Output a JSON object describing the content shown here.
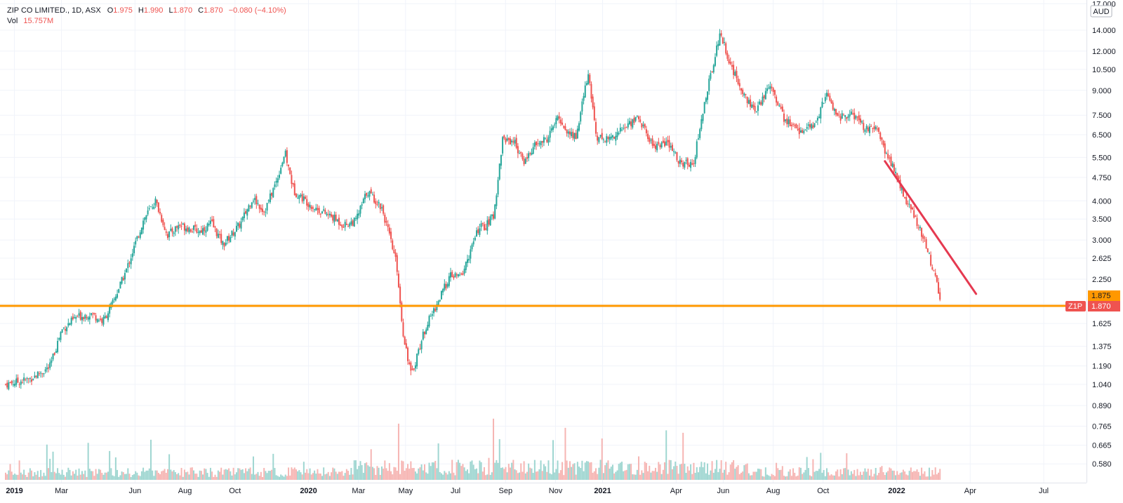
{
  "header": {
    "symbol": "ZIP CO LIMITED., 1D, ASX",
    "o_label": "O",
    "o_value": "1.975",
    "h_label": "H",
    "h_value": "1.990",
    "l_label": "L",
    "l_value": "1.870",
    "c_label": "C",
    "c_value": "1.870",
    "change": "−0.080 (−4.10%)",
    "vol_label": "Vol",
    "vol_value": "15.757M"
  },
  "chart_data": {
    "type": "candlestick",
    "scale": "log",
    "currency_label": "AUD",
    "y_ticks": [
      "17.000",
      "14.000",
      "12.000",
      "10.500",
      "9.000",
      "7.500",
      "6.500",
      "5.500",
      "4.750",
      "4.000",
      "3.500",
      "3.000",
      "2.625",
      "2.250",
      "1.875",
      "1.625",
      "1.375",
      "1.190",
      "1.040",
      "0.890",
      "0.765",
      "0.665",
      "0.580"
    ],
    "ylim": [
      0.5,
      17.5
    ],
    "x_ticks": [
      "2019",
      "Mar",
      "Jun",
      "Aug",
      "Oct",
      "2020",
      "Mar",
      "May",
      "Jul",
      "Sep",
      "Nov",
      "2021",
      "Apr",
      "Jun",
      "Aug",
      "Oct",
      "2022",
      "Apr",
      "Jul"
    ],
    "last_price": 1.87,
    "last_price_label": "1.870",
    "last_ticker_label": "Z1P",
    "prev_price_label": "1.875",
    "horizontal_line": {
      "price": 1.85,
      "color": "#ff9800"
    },
    "trend_line": {
      "from": [
        2021.96,
        5.35
      ],
      "to": [
        2022.27,
        2.02
      ],
      "color": "#e53950"
    },
    "colors": {
      "up": "#26a69a",
      "down": "#ef5350",
      "up_vol": "#9fd6d1",
      "down_vol": "#f6b5b3"
    },
    "price_path": [
      [
        2018.97,
        1.04
      ],
      [
        2019.05,
        1.08
      ],
      [
        2019.12,
        1.18
      ],
      [
        2019.16,
        1.55
      ],
      [
        2019.21,
        1.7
      ],
      [
        2019.26,
        1.75
      ],
      [
        2019.3,
        1.65
      ],
      [
        2019.33,
        1.85
      ],
      [
        2019.38,
        2.4
      ],
      [
        2019.44,
        3.5
      ],
      [
        2019.48,
        4.0
      ],
      [
        2019.52,
        3.1
      ],
      [
        2019.56,
        3.35
      ],
      [
        2019.63,
        3.2
      ],
      [
        2019.67,
        3.4
      ],
      [
        2019.71,
        2.9
      ],
      [
        2019.77,
        3.4
      ],
      [
        2019.81,
        4.1
      ],
      [
        2019.85,
        3.7
      ],
      [
        2019.89,
        4.6
      ],
      [
        2019.92,
        5.7
      ],
      [
        2019.95,
        4.3
      ],
      [
        2020.02,
        3.8
      ],
      [
        2020.08,
        3.55
      ],
      [
        2020.12,
        3.35
      ],
      [
        2020.16,
        3.45
      ],
      [
        2020.2,
        4.3
      ],
      [
        2020.25,
        3.8
      ],
      [
        2020.3,
        2.5
      ],
      [
        2020.32,
        1.55
      ],
      [
        2020.35,
        1.1
      ],
      [
        2020.37,
        1.3
      ],
      [
        2020.4,
        1.6
      ],
      [
        2020.44,
        1.9
      ],
      [
        2020.48,
        2.3
      ],
      [
        2020.52,
        2.3
      ],
      [
        2020.58,
        3.3
      ],
      [
        2020.6,
        3.3
      ],
      [
        2020.63,
        3.6
      ],
      [
        2020.66,
        6.3
      ],
      [
        2020.7,
        6.2
      ],
      [
        2020.73,
        5.3
      ],
      [
        2020.77,
        6.0
      ],
      [
        2020.81,
        6.3
      ],
      [
        2020.85,
        7.4
      ],
      [
        2020.88,
        6.6
      ],
      [
        2020.91,
        6.4
      ],
      [
        2020.95,
        10.2
      ],
      [
        2020.98,
        6.4
      ],
      [
        2021.02,
        6.3
      ],
      [
        2021.07,
        6.8
      ],
      [
        2021.12,
        7.4
      ],
      [
        2021.17,
        6.0
      ],
      [
        2021.22,
        6.1
      ],
      [
        2021.27,
        5.2
      ],
      [
        2021.31,
        5.35
      ],
      [
        2021.35,
        8.5
      ],
      [
        2021.4,
        13.8
      ],
      [
        2021.44,
        10.5
      ],
      [
        2021.48,
        8.8
      ],
      [
        2021.52,
        7.6
      ],
      [
        2021.57,
        9.5
      ],
      [
        2021.62,
        7.2
      ],
      [
        2021.67,
        6.7
      ],
      [
        2021.72,
        6.9
      ],
      [
        2021.76,
        8.8
      ],
      [
        2021.8,
        7.4
      ],
      [
        2021.85,
        7.5
      ],
      [
        2021.9,
        6.7
      ],
      [
        2021.93,
        6.8
      ],
      [
        2021.96,
        5.8
      ],
      [
        2022.0,
        4.8
      ],
      [
        2022.03,
        4.0
      ],
      [
        2022.06,
        3.6
      ],
      [
        2022.1,
        2.9
      ],
      [
        2022.13,
        2.3
      ],
      [
        2022.15,
        1.87
      ]
    ]
  }
}
